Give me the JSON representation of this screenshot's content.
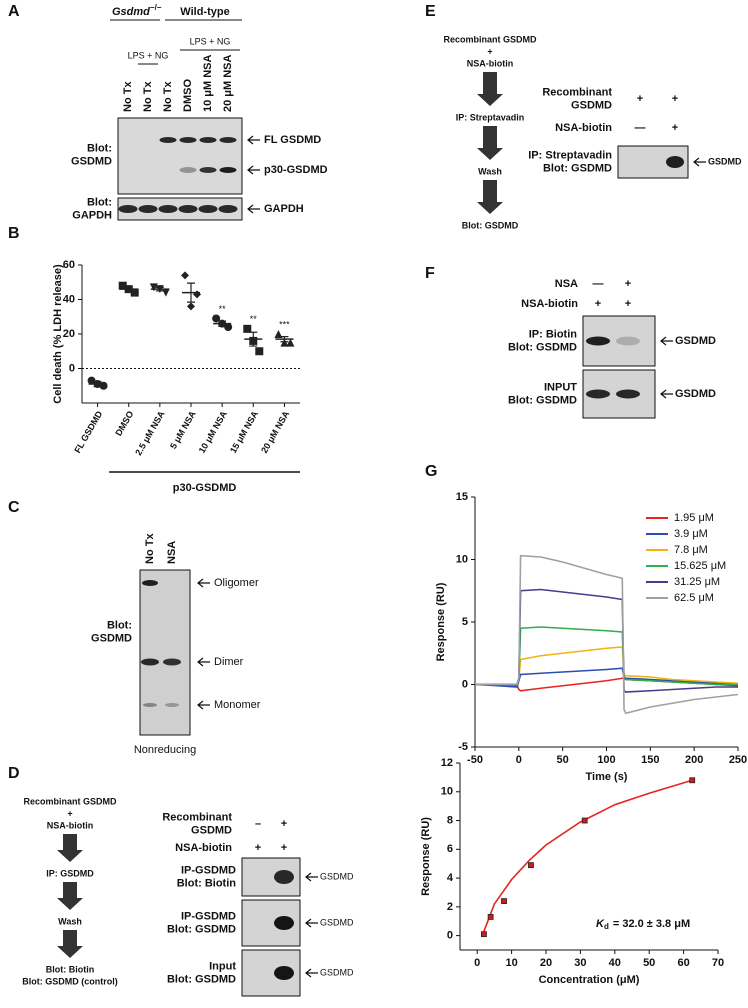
{
  "panel_a": {
    "label": "A",
    "ko_name": "Gsdmd",
    "ko_superscript": "−/−",
    "wild_type": "Wild-type",
    "treatments": [
      "LPS + NG",
      "LPS + NG"
    ],
    "lanes": [
      "No Tx",
      "No Tx",
      "No Tx",
      "DMSO",
      "10 μM NSA",
      "20 μM NSA"
    ],
    "blots": [
      {
        "label_lines": [
          "Blot:",
          "GSDMD"
        ],
        "bands": [
          "FL GSDMD",
          "p30-GSDMD"
        ]
      },
      {
        "label_lines": [
          "Blot:",
          "GAPDH"
        ],
        "bands": [
          "GAPDH"
        ]
      }
    ]
  },
  "panel_b": {
    "label": "B"
  },
  "panel_c": {
    "label": "C",
    "lanes": [
      "No Tx",
      "NSA"
    ],
    "blot_label_lines": [
      "Blot:",
      "GSDMD"
    ],
    "bands": [
      "Oligomer",
      "Dimer",
      "Monomer"
    ],
    "condition": "Nonreducing"
  },
  "panel_d": {
    "label": "D",
    "flow": {
      "input_lines": [
        "Recombinant GSDMD",
        "+",
        "NSA-biotin"
      ],
      "steps": [
        "IP: GSDMD",
        "Wash"
      ],
      "readout_lines": [
        "Blot: Biotin",
        "Blot: GSDMD (control)"
      ]
    },
    "conditions": [
      {
        "label_lines": [
          "Recombinant",
          "GSDMD"
        ],
        "signs": [
          "–",
          "+"
        ]
      },
      {
        "label_lines": [
          "NSA-biotin"
        ],
        "signs": [
          "+",
          "+"
        ]
      }
    ],
    "blots": [
      {
        "label_lines": [
          "IP-GSDMD",
          "Blot: Biotin"
        ],
        "band": "GSDMD"
      },
      {
        "label_lines": [
          "IP-GSDMD",
          "Blot: GSDMD"
        ],
        "band": "GSDMD"
      },
      {
        "label_lines": [
          "Input",
          "Blot: GSDMD"
        ],
        "band": "GSDMD"
      }
    ]
  },
  "panel_e": {
    "label": "E",
    "flow": {
      "input_lines": [
        "Recombinant GSDMD",
        "+",
        "NSA-biotin"
      ],
      "steps": [
        "IP: Streptavadin",
        "Wash"
      ],
      "readout_lines": [
        "Blot: GSDMD"
      ]
    },
    "conditions": [
      {
        "label_lines": [
          "Recombinant",
          "GSDMD"
        ],
        "signs": [
          "+",
          "+"
        ]
      },
      {
        "label_lines": [
          "NSA-biotin"
        ],
        "signs": [
          "—",
          "+"
        ]
      }
    ],
    "blots": [
      {
        "label_lines": [
          "IP: Streptavadin",
          "Blot: GSDMD"
        ],
        "band": "GSDMD"
      }
    ]
  },
  "panel_f": {
    "label": "F",
    "conditions": [
      {
        "label_lines": [
          "NSA"
        ],
        "signs": [
          "—",
          "+"
        ]
      },
      {
        "label_lines": [
          "NSA-biotin"
        ],
        "signs": [
          "+",
          "+"
        ]
      }
    ],
    "blots": [
      {
        "label_lines": [
          "IP: Biotin",
          "Blot: GSDMD"
        ],
        "band": "GSDMD"
      },
      {
        "label_lines": [
          "INPUT",
          "Blot: GSDMD"
        ],
        "band": "GSDMD"
      }
    ]
  },
  "panel_g": {
    "label": "G",
    "kd_symbol": "K",
    "kd_subscript": "d",
    "kd_value": "= 32.0 ± 3.8 μM"
  },
  "chart_data": [
    {
      "type": "dot",
      "y_label": "Cell death (% LDH release)",
      "categories": [
        "FL GSDMD",
        "DMSO",
        "2.5 μM NSA",
        "5 μM NSA",
        "10 μM NSA",
        "15 μM NSA",
        "20 μM NSA"
      ],
      "points": [
        [
          -7,
          -10,
          -9
        ],
        [
          48,
          44,
          46
        ],
        [
          47,
          44,
          46
        ],
        [
          54,
          43,
          36
        ],
        [
          29,
          24,
          26
        ],
        [
          23,
          10,
          16
        ],
        [
          20,
          15,
          15
        ]
      ],
      "means": [
        -9,
        46,
        46,
        44,
        26,
        17,
        17
      ],
      "sem": [
        1.5,
        1.5,
        1,
        5.5,
        1.5,
        4,
        1.5
      ],
      "markers": [
        "circle",
        "square",
        "triangle_down",
        "diamond",
        "circle",
        "square",
        "triangle_up"
      ],
      "annotations": [
        null,
        null,
        null,
        null,
        "**",
        "**",
        "***"
      ],
      "group_label": "p30-GSDMD",
      "reference_line": 0,
      "color": "#222222",
      "ylim": [
        -20,
        60
      ],
      "yticks": [
        0,
        20,
        40,
        60
      ]
    },
    {
      "type": "line",
      "x_label": "Time (s)",
      "y_label": "Response (RU)",
      "x": [
        -50,
        -25,
        -2,
        0,
        2,
        25,
        50,
        75,
        100,
        118,
        120,
        122,
        150,
        175,
        200,
        225,
        250
      ],
      "series": [
        {
          "name": "1.95 μM",
          "color": "#e8231f",
          "values": [
            0,
            0,
            -0.1,
            -0.4,
            -0.5,
            -0.3,
            -0.1,
            0.1,
            0.3,
            0.5,
            0.5,
            0.4,
            0.3,
            0.2,
            0.1,
            0,
            -0.1
          ]
        },
        {
          "name": "3.9 μM",
          "color": "#2b4fb0",
          "values": [
            0,
            -0.1,
            -0.2,
            0.3,
            0.8,
            0.9,
            1.0,
            1.1,
            1.2,
            1.3,
            0.6,
            0.5,
            0.4,
            0.3,
            0.2,
            0.1,
            0
          ]
        },
        {
          "name": "7.8 μM",
          "color": "#f2b20f",
          "values": [
            0,
            0,
            0,
            0.5,
            2.0,
            2.3,
            2.5,
            2.7,
            2.9,
            3.0,
            0.8,
            0.7,
            0.6,
            0.4,
            0.3,
            0.2,
            0.1
          ]
        },
        {
          "name": "15.625 μM",
          "color": "#2fb04c",
          "values": [
            0,
            0,
            0,
            0.5,
            4.5,
            4.6,
            4.5,
            4.4,
            4.3,
            4.2,
            0.5,
            0.4,
            0.3,
            0.2,
            0.1,
            0,
            0
          ]
        },
        {
          "name": "31.25 μM",
          "color": "#4b3a8c",
          "values": [
            0,
            0,
            0,
            0.5,
            7.5,
            7.6,
            7.4,
            7.2,
            7.0,
            6.8,
            -0.5,
            -0.6,
            -0.5,
            -0.4,
            -0.3,
            -0.2,
            -0.2
          ]
        },
        {
          "name": "62.5 μM",
          "color": "#a0a0a0",
          "values": [
            0,
            0,
            0,
            0.5,
            10.3,
            10.2,
            9.8,
            9.3,
            8.8,
            8.5,
            -2.0,
            -2.3,
            -1.8,
            -1.5,
            -1.2,
            -1.0,
            -0.8
          ]
        }
      ],
      "xlim": [
        -50,
        250
      ],
      "ylim": [
        -5,
        15
      ],
      "xticks": [
        -50,
        0,
        50,
        100,
        150,
        200,
        250
      ],
      "yticks": [
        -5,
        0,
        5,
        10,
        15
      ]
    },
    {
      "type": "scatter",
      "x_label": "Concentration (μM)",
      "y_label": "Response (RU)",
      "series": [
        {
          "type": "scatter",
          "color": "#c81e1e",
          "x": [
            1.95,
            3.9,
            7.8,
            15.625,
            31.25,
            62.5
          ],
          "values": [
            0.1,
            1.3,
            2.4,
            4.9,
            8.0,
            10.8
          ]
        },
        {
          "type": "line",
          "color": "#e8231f",
          "x": [
            1.95,
            5,
            10,
            15,
            20,
            30,
            40,
            50,
            62.5
          ],
          "values": [
            0.3,
            2.2,
            3.9,
            5.2,
            6.3,
            7.9,
            9.1,
            9.9,
            10.8
          ]
        }
      ],
      "xlim": [
        -5,
        70
      ],
      "ylim": [
        -1,
        12
      ],
      "xticks": [
        0,
        10,
        20,
        30,
        40,
        50,
        60,
        70
      ],
      "yticks": [
        0,
        2,
        4,
        6,
        8,
        10,
        12
      ]
    }
  ]
}
